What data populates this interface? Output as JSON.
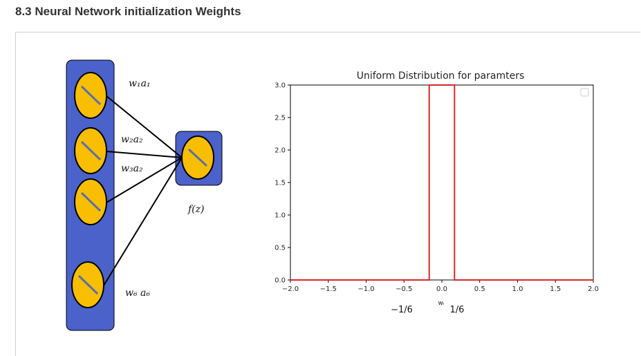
{
  "header": {
    "title": "8.3 Neural Network initialization Weights"
  },
  "network": {
    "edge_labels": [
      "w₁a₁",
      "w₂a₂",
      "w₃a₂",
      "w₆ a₆"
    ],
    "output_label": "f(z)",
    "colors": {
      "layer_fill": "#4a62c9",
      "node_fill": "#f9be00",
      "node_slash": "#5a6fa8",
      "edge": "#000000"
    }
  },
  "chart_data": {
    "type": "line",
    "title": "Uniform Distribution for paramters",
    "xlabel": "wᵢ",
    "ylabel": "",
    "xlim": [
      -2.0,
      2.0
    ],
    "ylim": [
      0.0,
      3.0
    ],
    "xticks": [
      "−2.0",
      "−1.5",
      "−1.0",
      "−0.5",
      "0.0",
      "0.5",
      "1.0",
      "1.5",
      "2.0"
    ],
    "yticks": [
      "0.0",
      "0.5",
      "1.0",
      "1.5",
      "2.0",
      "2.5",
      "3.0"
    ],
    "series": [
      {
        "x": [
          -2.0,
          -0.1667,
          -0.1667,
          0.1667,
          0.1667,
          2.0
        ],
        "y": [
          0,
          0,
          3.0,
          3.0,
          0,
          0
        ],
        "color": "#d62728"
      }
    ],
    "grid": false,
    "legend": "top-right",
    "annotations": [
      "−1/6",
      "1/6"
    ]
  }
}
